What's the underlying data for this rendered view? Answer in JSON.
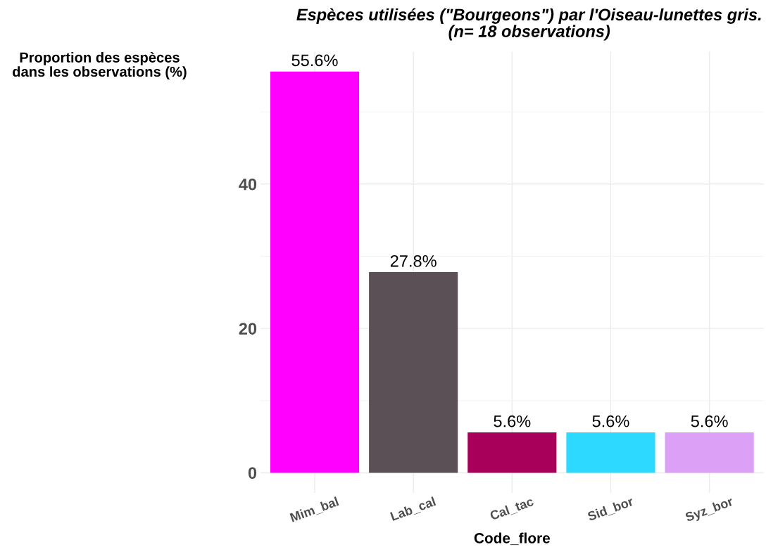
{
  "chart_data": {
    "type": "bar",
    "title": "Espèces utilisées (\"Bourgeons\") par l'Oiseau-lunettes gris.\n(n= 18 observations)",
    "xlabel": "Code_flore",
    "ylabel": "Proportion des espèces\ndans les observations (%)",
    "categories": [
      "Mim_bal",
      "Lab_cal",
      "Cal_tac",
      "Sid_bor",
      "Syz_bor"
    ],
    "values": [
      55.6,
      27.8,
      5.6,
      5.6,
      5.6
    ],
    "colors": [
      "#ff00ff",
      "#5a5055",
      "#a8005a",
      "#2ed9ff",
      "#dda0f7"
    ],
    "value_labels": [
      "55.6%",
      "27.8%",
      "5.6%",
      "5.6%",
      "5.6%"
    ],
    "ylim": [
      -2.78,
      58.38
    ],
    "yticks": [
      0,
      20,
      40
    ],
    "grid": true
  }
}
